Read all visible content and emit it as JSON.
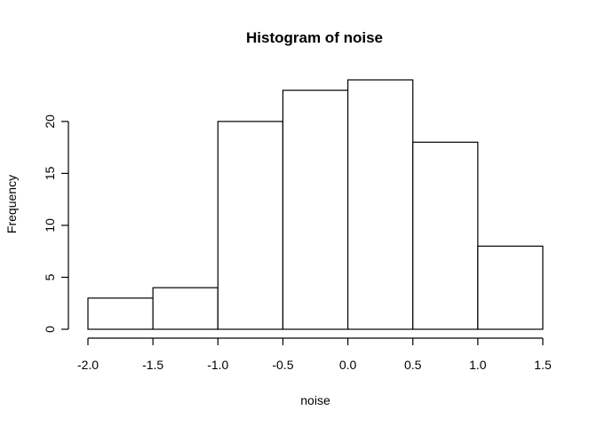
{
  "chart_data": {
    "type": "histogram",
    "title": "Histogram of noise",
    "xlabel": "noise",
    "ylabel": "Frequency",
    "bins": [
      {
        "start": -2.0,
        "end": -1.5,
        "count": 3
      },
      {
        "start": -1.5,
        "end": -1.0,
        "count": 4
      },
      {
        "start": -1.0,
        "end": -0.5,
        "count": 20
      },
      {
        "start": -0.5,
        "end": 0.0,
        "count": 23
      },
      {
        "start": 0.0,
        "end": 0.5,
        "count": 24
      },
      {
        "start": 0.5,
        "end": 1.0,
        "count": 18
      },
      {
        "start": 1.0,
        "end": 1.5,
        "count": 8
      }
    ],
    "xlim": [
      -2.0,
      1.5
    ],
    "ylim": [
      0,
      24
    ],
    "x_ticks": [
      -2.0,
      -1.5,
      -1.0,
      -0.5,
      0.0,
      0.5,
      1.0,
      1.5
    ],
    "x_tick_labels": [
      "-2.0",
      "-1.5",
      "-1.0",
      "-0.5",
      "0.0",
      "0.5",
      "1.0",
      "1.5"
    ],
    "y_ticks": [
      0,
      5,
      10,
      15,
      20
    ],
    "y_tick_labels": [
      "0",
      "5",
      "10",
      "15",
      "20"
    ],
    "grid": false,
    "bar_fill": "#ffffff",
    "bar_stroke": "#000000"
  }
}
